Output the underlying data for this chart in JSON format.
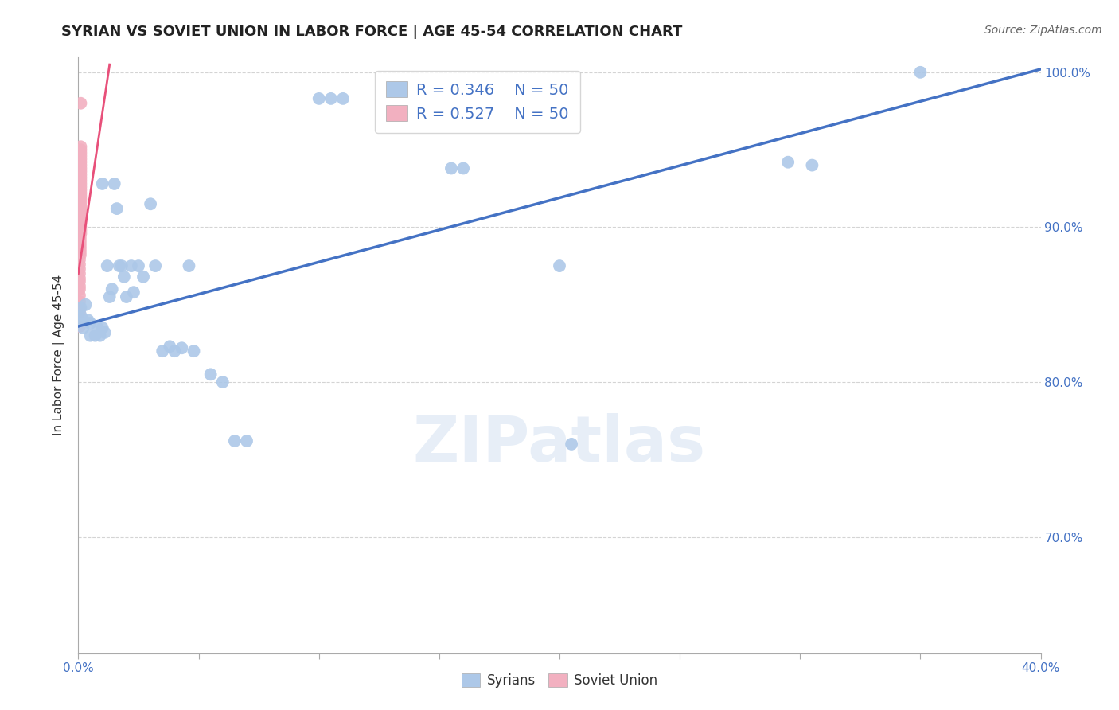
{
  "title": "SYRIAN VS SOVIET UNION IN LABOR FORCE | AGE 45-54 CORRELATION CHART",
  "source": "Source: ZipAtlas.com",
  "ylabel": "In Labor Force | Age 45-54",
  "xlim": [
    0.0,
    0.4
  ],
  "ylim": [
    0.625,
    1.01
  ],
  "ytick_positions": [
    0.7,
    0.8,
    0.9,
    1.0
  ],
  "ytick_labels": [
    "70.0%",
    "80.0%",
    "90.0%",
    "100.0%"
  ],
  "xtick_vals": [
    0.0,
    0.05,
    0.1,
    0.15,
    0.2,
    0.25,
    0.3,
    0.35,
    0.4
  ],
  "legend_entries": [
    {
      "label": "Syrians",
      "R": "0.346",
      "N": "50",
      "color": "#adc8e8"
    },
    {
      "label": "Soviet Union",
      "R": "0.527",
      "N": "50",
      "color": "#f2b0c0"
    }
  ],
  "syrians_x": [
    0.001,
    0.001,
    0.001,
    0.002,
    0.002,
    0.003,
    0.004,
    0.005,
    0.005,
    0.007,
    0.008,
    0.009,
    0.01,
    0.01,
    0.011,
    0.012,
    0.013,
    0.014,
    0.015,
    0.016,
    0.017,
    0.018,
    0.019,
    0.02,
    0.022,
    0.023,
    0.025,
    0.027,
    0.03,
    0.032,
    0.035,
    0.038,
    0.04,
    0.043,
    0.046,
    0.048,
    0.055,
    0.06,
    0.065,
    0.07,
    0.1,
    0.105,
    0.11,
    0.155,
    0.16,
    0.2,
    0.205,
    0.295,
    0.305,
    0.35
  ],
  "syrians_y": [
    0.84,
    0.843,
    0.848,
    0.84,
    0.835,
    0.85,
    0.84,
    0.838,
    0.83,
    0.83,
    0.835,
    0.83,
    0.928,
    0.835,
    0.832,
    0.875,
    0.855,
    0.86,
    0.928,
    0.912,
    0.875,
    0.875,
    0.868,
    0.855,
    0.875,
    0.858,
    0.875,
    0.868,
    0.915,
    0.875,
    0.82,
    0.823,
    0.82,
    0.822,
    0.875,
    0.82,
    0.805,
    0.8,
    0.762,
    0.762,
    0.983,
    0.983,
    0.983,
    0.938,
    0.938,
    0.875,
    0.76,
    0.942,
    0.94,
    1.0
  ],
  "soviet_x": [
    0.0005,
    0.0005,
    0.0005,
    0.0005,
    0.0005,
    0.0005,
    0.0005,
    0.0005,
    0.0005,
    0.0005,
    0.0005,
    0.0005,
    0.0005,
    0.0008,
    0.0008,
    0.0008,
    0.0008,
    0.0008,
    0.0008,
    0.0008,
    0.001,
    0.001,
    0.001,
    0.001,
    0.001,
    0.001,
    0.001,
    0.001,
    0.001,
    0.001,
    0.001,
    0.001,
    0.001,
    0.001,
    0.001,
    0.001,
    0.001,
    0.001,
    0.001,
    0.001,
    0.001,
    0.001,
    0.001,
    0.001,
    0.001,
    0.001,
    0.001,
    0.001,
    0.001,
    0.001
  ],
  "soviet_y": [
    0.836,
    0.845,
    0.848,
    0.852,
    0.856,
    0.86,
    0.862,
    0.865,
    0.867,
    0.87,
    0.873,
    0.876,
    0.879,
    0.882,
    0.884,
    0.886,
    0.888,
    0.89,
    0.892,
    0.894,
    0.896,
    0.898,
    0.9,
    0.902,
    0.904,
    0.906,
    0.908,
    0.91,
    0.912,
    0.914,
    0.916,
    0.918,
    0.92,
    0.922,
    0.924,
    0.926,
    0.928,
    0.93,
    0.932,
    0.934,
    0.936,
    0.938,
    0.94,
    0.942,
    0.944,
    0.946,
    0.948,
    0.95,
    0.952,
    0.98
  ],
  "blue_line_x": [
    0.0,
    0.4
  ],
  "blue_line_y": [
    0.836,
    1.002
  ],
  "pink_line_x": [
    0.0,
    0.013
  ],
  "pink_line_y": [
    0.87,
    1.005
  ],
  "scatter_blue_color": "#adc8e8",
  "scatter_pink_color": "#f2b0c0",
  "line_blue_color": "#4472c4",
  "line_pink_color": "#e8507a",
  "grid_color": "#d0d0d0",
  "bg_color": "#ffffff",
  "watermark_text": "ZIPatlas",
  "title_fontsize": 13,
  "axis_label_fontsize": 11,
  "tick_fontsize": 11,
  "legend_fontsize": 14,
  "source_fontsize": 10
}
